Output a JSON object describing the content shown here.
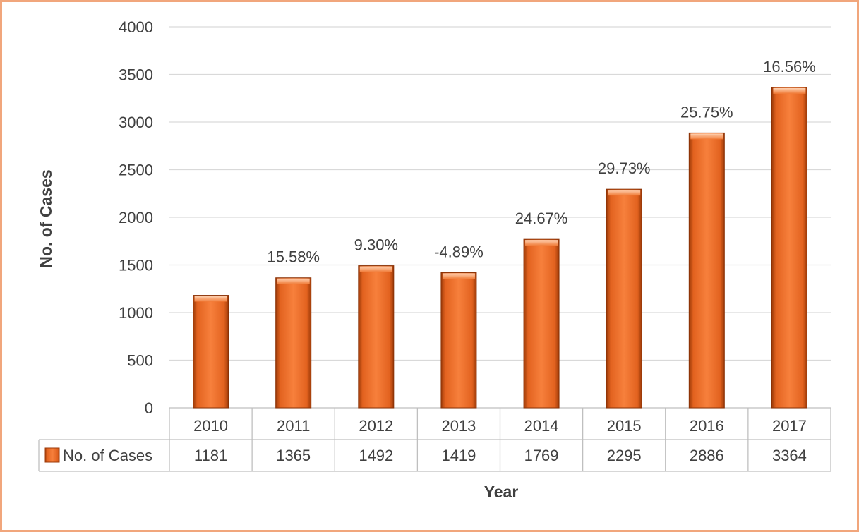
{
  "chart_data": {
    "type": "bar",
    "xlabel": "Year",
    "ylabel": "No. of Cases",
    "ylim": [
      0,
      4000
    ],
    "yticks": [
      0,
      500,
      1000,
      1500,
      2000,
      2500,
      3000,
      3500,
      4000
    ],
    "categories": [
      "2010",
      "2011",
      "2012",
      "2013",
      "2014",
      "2015",
      "2016",
      "2017"
    ],
    "series": [
      {
        "name": "No. of Cases",
        "values": [
          1181,
          1365,
          1492,
          1419,
          1769,
          2295,
          2886,
          3364
        ],
        "color": "#f07030"
      }
    ],
    "bar_annotations": [
      "",
      "15.58%",
      "9.30%",
      "-4.89%",
      "24.67%",
      "29.73%",
      "25.75%",
      "16.56%"
    ],
    "grid": true,
    "legend": "data-table",
    "frame_color": "#f1a67c"
  }
}
